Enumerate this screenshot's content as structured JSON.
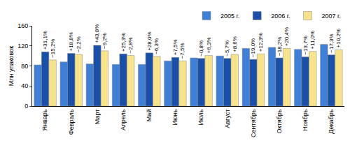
{
  "chart_data": {
    "type": "bar",
    "y_label": "Млн упаковок",
    "categories": [
      "Январь",
      "Февраль",
      "Март",
      "Апрель",
      "Май",
      "Июнь",
      "Июль",
      "Август",
      "Сентябрь",
      "Октябрь",
      "Ноябрь",
      "Декабрь"
    ],
    "series": [
      {
        "name": "2005 г.",
        "color": "#3f7fd6",
        "values": [
          82,
          88,
          84,
          83,
          83,
          90,
          96,
          100,
          115,
          117,
          113,
          123
        ]
      },
      {
        "name": "2006 г.",
        "color": "#1a4fa8",
        "values": [
          108,
          105,
          121,
          104,
          106,
          97,
          95,
          95,
          93,
          96,
          98,
          102
        ],
        "labels": [
          "+31,1%",
          "+18,8%",
          "+43,8%",
          "+25,3%",
          "+28,0%",
          "+7,5%",
          "−0,8%",
          "−5,7%",
          "−19,0%",
          "−18,2%",
          "−13,7%",
          "−17,3%"
        ]
      },
      {
        "name": "2007 г.",
        "color": "#f6e38c",
        "values": [
          92,
          103,
          110,
          101,
          99,
          90,
          101,
          103,
          104,
          115,
          109,
          112
        ],
        "labels": [
          "−15,2%",
          "−2,2%",
          "−9,2%",
          "−2,8%",
          "−6,3%",
          "−7,5%",
          "+6,3%",
          "+8,6%",
          "+12,3%",
          "+20,4%",
          "+11,0%",
          "+10,2%"
        ]
      }
    ],
    "ylim": [
      0,
      160
    ],
    "yticks": [
      0,
      40,
      80,
      120,
      160
    ],
    "grid": false,
    "legend": "top right"
  }
}
